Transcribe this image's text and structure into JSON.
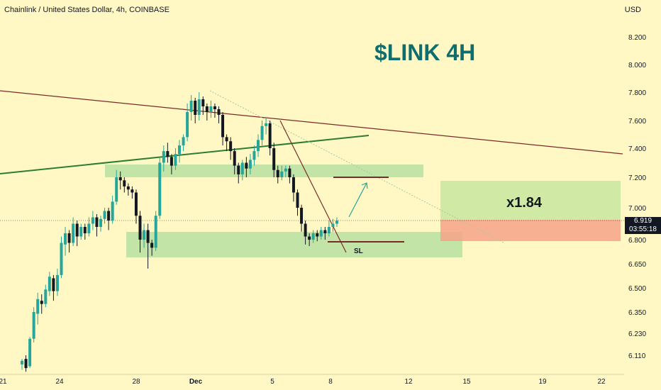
{
  "header": {
    "title": "Chainlink / United States Dollar, 4h, COINBASE",
    "currency": "USD"
  },
  "annotations": {
    "ticker": "$LINK 4H",
    "ratio": "x1.84",
    "stop_label": "SL"
  },
  "colors": {
    "background": "#fff8c4",
    "up": "#26a69a",
    "down": "#131722",
    "zone": "#8fd68f",
    "trend_brown": "#7b2a2a",
    "trend_green": "#2e7d32",
    "target": "#c8e8a0",
    "stop": "#f6a58a"
  },
  "chart_data": {
    "type": "candlestick",
    "y_ticks": [
      "8.200",
      "8.000",
      "7.800",
      "7.600",
      "7.400",
      "7.200",
      "7.000",
      "6.800",
      "6.650",
      "6.500",
      "6.350",
      "6.230",
      "6.110"
    ],
    "x_ticks": [
      "21",
      "24",
      "28",
      "Dec",
      "5",
      "8",
      "12",
      "15",
      "19",
      "22"
    ],
    "last_price": "6.919",
    "countdown": "03:55:18",
    "candles": [
      [
        6.06,
        6.08,
        6.03,
        6.09
      ],
      [
        6.09,
        6.04,
        6.02,
        6.11
      ],
      [
        6.05,
        6.2,
        6.04,
        6.21
      ],
      [
        6.2,
        6.35,
        6.18,
        6.38
      ],
      [
        6.34,
        6.43,
        6.28,
        6.47
      ],
      [
        6.42,
        6.4,
        6.34,
        6.46
      ],
      [
        6.4,
        6.49,
        6.38,
        6.52
      ],
      [
        6.48,
        6.57,
        6.45,
        6.6
      ],
      [
        6.56,
        6.48,
        6.42,
        6.58
      ],
      [
        6.48,
        6.58,
        6.45,
        6.62
      ],
      [
        6.58,
        6.78,
        6.56,
        6.82
      ],
      [
        6.77,
        6.84,
        6.7,
        6.88
      ],
      [
        6.84,
        6.78,
        6.72,
        6.86
      ],
      [
        6.78,
        6.9,
        6.76,
        6.94
      ],
      [
        6.9,
        6.82,
        6.76,
        6.92
      ],
      [
        6.82,
        6.88,
        6.8,
        6.9
      ],
      [
        6.88,
        6.84,
        6.8,
        6.9
      ],
      [
        6.84,
        6.9,
        6.82,
        6.94
      ],
      [
        6.9,
        6.94,
        6.86,
        6.98
      ],
      [
        6.94,
        6.88,
        6.82,
        6.96
      ],
      [
        6.88,
        6.93,
        6.85,
        6.95
      ],
      [
        6.93,
        6.98,
        6.9,
        7.0
      ],
      [
        6.98,
        6.92,
        6.86,
        7.0
      ],
      [
        6.92,
        7.04,
        6.9,
        7.08
      ],
      [
        7.04,
        7.2,
        7.02,
        7.25
      ],
      [
        7.2,
        7.18,
        7.12,
        7.24
      ],
      [
        7.18,
        7.14,
        7.1,
        7.2
      ],
      [
        7.14,
        7.12,
        7.08,
        7.16
      ],
      [
        7.12,
        7.1,
        7.06,
        7.14
      ],
      [
        7.1,
        6.95,
        6.9,
        7.12
      ],
      [
        6.95,
        6.8,
        6.72,
        6.98
      ],
      [
        6.8,
        6.86,
        6.75,
        6.9
      ],
      [
        6.86,
        6.78,
        6.62,
        6.9
      ],
      [
        6.78,
        6.75,
        6.7,
        6.8
      ],
      [
        6.75,
        6.95,
        6.73,
        6.98
      ],
      [
        6.95,
        7.3,
        6.93,
        7.34
      ],
      [
        7.3,
        7.38,
        7.24,
        7.42
      ],
      [
        7.38,
        7.34,
        7.3,
        7.44
      ],
      [
        7.34,
        7.28,
        7.22,
        7.36
      ],
      [
        7.28,
        7.36,
        7.25,
        7.4
      ],
      [
        7.36,
        7.42,
        7.3,
        7.46
      ],
      [
        7.42,
        7.48,
        7.38,
        7.5
      ],
      [
        7.48,
        7.66,
        7.45,
        7.72
      ],
      [
        7.66,
        7.74,
        7.6,
        7.78
      ],
      [
        7.74,
        7.64,
        7.58,
        7.76
      ],
      [
        7.64,
        7.75,
        7.6,
        7.8
      ],
      [
        7.75,
        7.7,
        7.64,
        7.77
      ],
      [
        7.7,
        7.66,
        7.6,
        7.72
      ],
      [
        7.66,
        7.7,
        7.62,
        7.74
      ],
      [
        7.7,
        7.68,
        7.62,
        7.72
      ],
      [
        7.68,
        7.64,
        7.58,
        7.7
      ],
      [
        7.64,
        7.48,
        7.42,
        7.66
      ],
      [
        7.48,
        7.45,
        7.38,
        7.5
      ],
      [
        7.45,
        7.38,
        7.32,
        7.48
      ],
      [
        7.38,
        7.28,
        7.22,
        7.4
      ],
      [
        7.28,
        7.22,
        7.16,
        7.3
      ],
      [
        7.22,
        7.3,
        7.18,
        7.32
      ],
      [
        7.3,
        7.26,
        7.2,
        7.34
      ],
      [
        7.26,
        7.32,
        7.22,
        7.36
      ],
      [
        7.32,
        7.38,
        7.28,
        7.42
      ],
      [
        7.38,
        7.46,
        7.34,
        7.5
      ],
      [
        7.46,
        7.56,
        7.42,
        7.6
      ],
      [
        7.56,
        7.58,
        7.5,
        7.62
      ],
      [
        7.58,
        7.4,
        7.35,
        7.6
      ],
      [
        7.4,
        7.25,
        7.2,
        7.44
      ],
      [
        7.25,
        7.2,
        7.16,
        7.28
      ],
      [
        7.2,
        7.24,
        7.18,
        7.28
      ],
      [
        7.24,
        7.26,
        7.2,
        7.28
      ],
      [
        7.26,
        7.2,
        7.16,
        7.28
      ],
      [
        7.2,
        7.1,
        7.04,
        7.22
      ],
      [
        7.1,
        7.0,
        6.95,
        7.12
      ],
      [
        7.0,
        6.9,
        6.85,
        7.02
      ],
      [
        6.9,
        6.82,
        6.77,
        6.92
      ],
      [
        6.82,
        6.8,
        6.76,
        6.84
      ],
      [
        6.8,
        6.84,
        6.78,
        6.86
      ],
      [
        6.84,
        6.82,
        6.79,
        6.86
      ],
      [
        6.82,
        6.86,
        6.8,
        6.88
      ],
      [
        6.86,
        6.84,
        6.8,
        6.88
      ],
      [
        6.84,
        6.88,
        6.82,
        6.92
      ],
      [
        6.88,
        6.9,
        6.85,
        6.93
      ],
      [
        6.9,
        6.92,
        6.88,
        6.94
      ]
    ]
  }
}
